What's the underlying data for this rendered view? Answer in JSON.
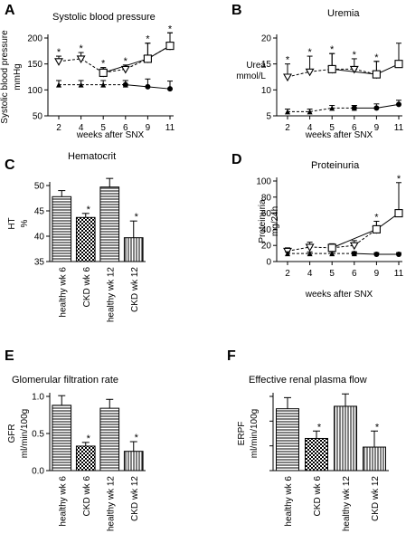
{
  "chart_data": [
    {
      "id": "A",
      "type": "line",
      "letter": "A",
      "title": "Systolic blood pressure",
      "ylabel": [
        "Systolic blood pressure",
        "mmHg"
      ],
      "xlabel": "weeks after SNX",
      "x": [
        "2",
        "4",
        "5",
        "6",
        "9",
        "11"
      ],
      "ylim": [
        50,
        200
      ],
      "yticks": [
        50,
        100,
        150,
        200
      ],
      "series": [
        {
          "marker": "triangle-down",
          "dash": true,
          "values": [
            155,
            160,
            133,
            140,
            160,
            185
          ],
          "err": [
            10,
            12,
            10,
            8,
            30,
            25
          ],
          "stars": [
            true,
            true,
            true,
            true,
            true,
            true
          ]
        },
        {
          "marker": "square",
          "dash": false,
          "values": [
            null,
            null,
            133,
            null,
            160,
            185
          ],
          "err": [
            null,
            null,
            10,
            null,
            30,
            25
          ],
          "stars": [
            false,
            false,
            false,
            false,
            false,
            false
          ]
        },
        {
          "marker": "triangle-up",
          "dash": true,
          "values": [
            110,
            110,
            110,
            110,
            null,
            null
          ],
          "err": [
            8,
            8,
            8,
            8,
            null,
            null
          ],
          "stars": [
            false,
            false,
            false,
            false,
            false,
            false
          ]
        },
        {
          "marker": "circle",
          "dash": false,
          "values": [
            null,
            null,
            null,
            110,
            106,
            102
          ],
          "err": [
            null,
            null,
            null,
            8,
            15,
            15
          ],
          "stars": [
            false,
            false,
            false,
            false,
            false,
            false
          ]
        }
      ]
    },
    {
      "id": "B",
      "type": "line",
      "letter": "B",
      "title": "Uremia",
      "ylabel": [
        "Urea",
        "mmol/L"
      ],
      "xlabel": "weeks after SNX",
      "x": [
        "2",
        "4",
        "5",
        "6",
        "9",
        "11"
      ],
      "ylim": [
        5,
        20
      ],
      "yticks": [
        5,
        10,
        15,
        20
      ],
      "series": [
        {
          "marker": "triangle-down",
          "dash": true,
          "values": [
            12.5,
            13.5,
            14,
            14,
            13,
            null
          ],
          "err": [
            2.5,
            3,
            3,
            2,
            2.5,
            null
          ],
          "stars": [
            true,
            true,
            true,
            true,
            true,
            true
          ]
        },
        {
          "marker": "square",
          "dash": false,
          "values": [
            null,
            null,
            14,
            null,
            13,
            15
          ],
          "err": [
            null,
            null,
            3,
            null,
            2.5,
            4
          ],
          "stars": [
            false,
            false,
            false,
            false,
            false,
            false
          ]
        },
        {
          "marker": "triangle-up",
          "dash": true,
          "values": [
            5.8,
            5.8,
            6.5,
            6.5,
            null,
            null
          ],
          "err": [
            0.5,
            0.5,
            0.5,
            0.5,
            null,
            null
          ],
          "stars": [
            false,
            false,
            false,
            false,
            false,
            false
          ]
        },
        {
          "marker": "circle",
          "dash": false,
          "values": [
            null,
            null,
            null,
            6.5,
            6.5,
            7.2
          ],
          "err": [
            null,
            null,
            null,
            0.5,
            0.8,
            0.8
          ],
          "stars": [
            false,
            false,
            false,
            false,
            false,
            false
          ]
        }
      ]
    },
    {
      "id": "C",
      "type": "bar",
      "letter": "C",
      "title": "Hematocrit",
      "ylabel": [
        "HT",
        "%"
      ],
      "categories": [
        "healthy wk 6",
        "CKD wk 6",
        "healthy wk 12",
        "CKD wk 12"
      ],
      "values": [
        47.8,
        43.7,
        49.7,
        39.7
      ],
      "err": [
        1.2,
        0.8,
        1.7,
        3.3
      ],
      "stars": [
        false,
        true,
        false,
        true
      ],
      "patterns": [
        "hlines",
        "checker",
        "hlines",
        "vlines"
      ],
      "ylim": [
        35,
        50
      ],
      "yticks": [
        35,
        40,
        45,
        50
      ]
    },
    {
      "id": "D",
      "type": "line",
      "letter": "D",
      "title": "Proteinuria",
      "ylabel": [
        "Proteinuria",
        "mg/24h"
      ],
      "xlabel": "weeks after SNX",
      "x": [
        "2",
        "4",
        "5",
        "6",
        "9",
        "11"
      ],
      "ylim": [
        0,
        100
      ],
      "yticks": [
        0,
        20,
        40,
        60,
        80,
        100
      ],
      "series": [
        {
          "marker": "triangle-down",
          "dash": true,
          "values": [
            13,
            18,
            17,
            20,
            40,
            null
          ],
          "err": [
            4,
            6,
            5,
            6,
            10,
            null
          ],
          "stars": [
            false,
            false,
            false,
            false,
            true,
            false
          ]
        },
        {
          "marker": "square",
          "dash": false,
          "values": [
            null,
            null,
            17,
            null,
            40,
            60
          ],
          "err": [
            null,
            null,
            5,
            null,
            10,
            38
          ],
          "stars": [
            false,
            false,
            false,
            false,
            false,
            true
          ]
        },
        {
          "marker": "triangle-up",
          "dash": true,
          "values": [
            10,
            10,
            10,
            10,
            null,
            null
          ],
          "err": [
            2,
            2,
            2,
            2,
            null,
            null
          ],
          "stars": [
            false,
            false,
            false,
            false,
            false,
            false
          ]
        },
        {
          "marker": "circle",
          "dash": false,
          "values": [
            null,
            null,
            null,
            10,
            9,
            9
          ],
          "err": [
            null,
            null,
            null,
            2,
            2,
            2
          ],
          "stars": [
            false,
            false,
            false,
            false,
            false,
            false
          ]
        }
      ]
    },
    {
      "id": "E",
      "type": "bar",
      "letter": "E",
      "title": "Glomerular filtration rate",
      "ylabel": [
        "GFR",
        "ml/min/100g"
      ],
      "categories": [
        "healthy wk 6",
        "CKD wk 6",
        "healthy wk 12",
        "CKD wk 12"
      ],
      "values": [
        0.88,
        0.33,
        0.84,
        0.26
      ],
      "err": [
        0.13,
        0.05,
        0.12,
        0.13
      ],
      "stars": [
        false,
        true,
        false,
        true
      ],
      "patterns": [
        "hlines",
        "checker",
        "hlines",
        "vlines"
      ],
      "ylim": [
        0,
        1
      ],
      "yticks": [
        0.0,
        0.5,
        1.0
      ],
      "ydecimals": 1
    },
    {
      "id": "F",
      "type": "bar",
      "letter": "F",
      "title": "Effective renal plasma flow",
      "ylabel": [
        "ERPF",
        "ml/min/100g"
      ],
      "categories": [
        "healthy wk 6",
        "CKD wk 6",
        "healthy wk 12",
        "CKD wk 12"
      ],
      "values": [
        2.5,
        1.3,
        2.6,
        0.95
      ],
      "err": [
        0.45,
        0.3,
        0.5,
        0.65
      ],
      "stars": [
        false,
        true,
        false,
        true
      ],
      "patterns": [
        "hlines",
        "checker",
        "vlines",
        "vlines"
      ],
      "ylim": [
        0,
        3
      ],
      "yticks": [],
      "colors": {
        "ink": "#000000",
        "fill": "#ffffff"
      }
    }
  ]
}
